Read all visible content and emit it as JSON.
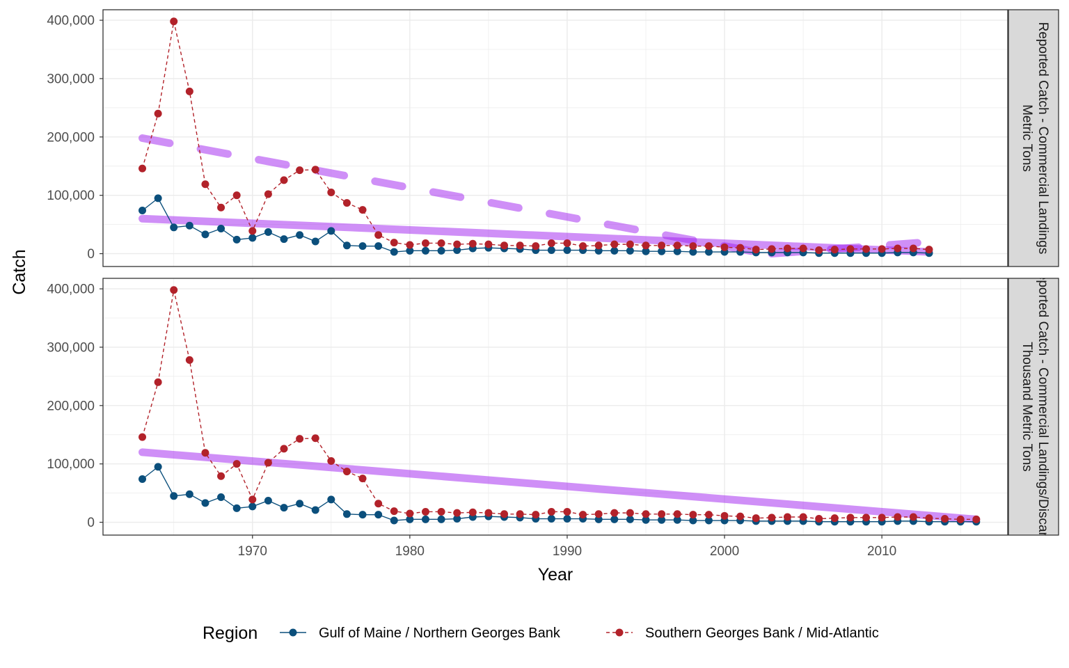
{
  "chart_data": {
    "type": "line",
    "xlabel": "Year",
    "ylabel": "Catch",
    "x_ticks": [
      1970,
      1980,
      1990,
      2000,
      2010
    ],
    "x_tick_labels": [
      "1970",
      "1980",
      "1990",
      "2000",
      "2010"
    ],
    "y_ticks": [
      0,
      100000,
      200000,
      300000,
      400000
    ],
    "y_tick_labels": [
      "0",
      "100,000",
      "200,000",
      "300,000",
      "400,000"
    ],
    "xlim": [
      1960.5,
      2018
    ],
    "ylim": [
      -22000,
      418000
    ],
    "grid": true,
    "legend": {
      "title": "Region",
      "position": "bottom",
      "entries": [
        {
          "label": "Gulf of Maine / Northern Georges Bank",
          "color": "#0b4f7c",
          "linetype": "solid"
        },
        {
          "label": "Southern Georges Bank / Mid-Atlantic",
          "color": "#b2222a",
          "linetype": "dashed"
        }
      ]
    },
    "trend_color": "#a020f0",
    "panels": [
      {
        "strip_label_lines": [
          "Reported Catch - Commercial Landings",
          "Metric Tons"
        ],
        "series": [
          {
            "name": "Gulf of Maine / Northern Georges Bank",
            "color": "#0b4f7c",
            "x": [
              1963,
              1964,
              1965,
              1966,
              1967,
              1968,
              1969,
              1970,
              1971,
              1972,
              1973,
              1974,
              1975,
              1976,
              1977,
              1978,
              1979,
              1980,
              1981,
              1982,
              1983,
              1984,
              1985,
              1986,
              1987,
              1988,
              1989,
              1990,
              1991,
              1992,
              1993,
              1994,
              1995,
              1996,
              1997,
              1998,
              1999,
              2000,
              2001,
              2002,
              2003,
              2004,
              2005,
              2006,
              2007,
              2008,
              2009,
              2010,
              2011,
              2012,
              2013
            ],
            "y": [
              74000,
              95000,
              45000,
              48000,
              33000,
              43000,
              24000,
              27000,
              37000,
              25000,
              32000,
              21000,
              39000,
              14000,
              13000,
              13000,
              3000,
              5000,
              5000,
              5000,
              6000,
              9000,
              10000,
              9000,
              8000,
              6000,
              6000,
              6000,
              6000,
              5000,
              5000,
              5000,
              4000,
              4000,
              4000,
              3000,
              3000,
              3000,
              3000,
              2000,
              2000,
              2000,
              2000,
              1000,
              1000,
              1000,
              1000,
              1000,
              2000,
              2000,
              1000
            ]
          },
          {
            "name": "Southern Georges Bank / Mid-Atlantic",
            "color": "#b2222a",
            "x": [
              1963,
              1964,
              1965,
              1966,
              1967,
              1968,
              1969,
              1970,
              1971,
              1972,
              1973,
              1974,
              1975,
              1976,
              1977,
              1978,
              1979,
              1980,
              1981,
              1982,
              1983,
              1984,
              1985,
              1986,
              1987,
              1988,
              1989,
              1990,
              1991,
              1992,
              1993,
              1994,
              1995,
              1996,
              1997,
              1998,
              1999,
              2000,
              2001,
              2002,
              2003,
              2004,
              2005,
              2006,
              2007,
              2008,
              2009,
              2010,
              2011,
              2012,
              2013
            ],
            "y": [
              146000,
              240000,
              398000,
              278000,
              119000,
              79000,
              100000,
              39000,
              102000,
              126000,
              143000,
              144000,
              105000,
              87000,
              75000,
              32000,
              19000,
              15000,
              18000,
              18000,
              16000,
              17000,
              16000,
              14000,
              14000,
              13000,
              18000,
              18000,
              13000,
              14000,
              16000,
              16000,
              14000,
              14000,
              14000,
              13000,
              13000,
              11000,
              10000,
              7000,
              8000,
              9000,
              9000,
              6000,
              7000,
              8000,
              8000,
              8000,
              9000,
              9000,
              7000
            ]
          }
        ],
        "trends": [
          {
            "x0": 1963,
            "y0": 60000,
            "x1": 2013,
            "y1": 3000,
            "style": "solid"
          },
          {
            "x0": 1963,
            "y0": 198000,
            "x1": 2003,
            "y1": -2000,
            "style": "dashed"
          },
          {
            "x0": 2003,
            "y0": 0,
            "x1": 2013,
            "y1": 20000,
            "style": "dashed"
          }
        ]
      },
      {
        "strip_label_lines": [
          "Reported Catch - Commercial Landings/Discards",
          "Thousand Metric Tons"
        ],
        "series": [
          {
            "name": "Gulf of Maine / Northern Georges Bank",
            "color": "#0b4f7c",
            "x": [
              1963,
              1964,
              1965,
              1966,
              1967,
              1968,
              1969,
              1970,
              1971,
              1972,
              1973,
              1974,
              1975,
              1976,
              1977,
              1978,
              1979,
              1980,
              1981,
              1982,
              1983,
              1984,
              1985,
              1986,
              1987,
              1988,
              1989,
              1990,
              1991,
              1992,
              1993,
              1994,
              1995,
              1996,
              1997,
              1998,
              1999,
              2000,
              2001,
              2002,
              2003,
              2004,
              2005,
              2006,
              2007,
              2008,
              2009,
              2010,
              2011,
              2012,
              2013,
              2014,
              2015,
              2016
            ],
            "y": [
              74,
              95,
              45,
              48,
              33,
              43,
              24,
              27,
              37,
              25,
              32,
              21,
              39,
              14,
              13,
              13,
              3,
              5,
              5,
              5,
              6,
              9,
              10,
              9,
              8,
              6,
              6,
              6,
              6,
              5,
              5,
              5,
              4,
              4,
              4,
              3,
              3,
              3,
              3,
              2,
              2,
              2,
              2,
              1,
              1,
              1,
              1,
              1,
              2,
              2,
              1,
              1,
              1,
              1
            ]
          },
          {
            "name": "Southern Georges Bank / Mid-Atlantic",
            "color": "#b2222a",
            "x": [
              1963,
              1964,
              1965,
              1966,
              1967,
              1968,
              1969,
              1970,
              1971,
              1972,
              1973,
              1974,
              1975,
              1976,
              1977,
              1978,
              1979,
              1980,
              1981,
              1982,
              1983,
              1984,
              1985,
              1986,
              1987,
              1988,
              1989,
              1990,
              1991,
              1992,
              1993,
              1994,
              1995,
              1996,
              1997,
              1998,
              1999,
              2000,
              2001,
              2002,
              2003,
              2004,
              2005,
              2006,
              2007,
              2008,
              2009,
              2010,
              2011,
              2012,
              2013,
              2014,
              2015,
              2016
            ],
            "y": [
              146,
              240,
              398,
              278,
              119,
              79,
              100,
              39,
              102,
              126,
              143,
              144,
              105,
              87,
              75,
              32,
              19,
              15,
              18,
              18,
              16,
              17,
              16,
              14,
              14,
              13,
              18,
              18,
              13,
              14,
              16,
              16,
              14,
              14,
              14,
              13,
              13,
              11,
              10,
              7,
              8,
              9,
              9,
              6,
              7,
              8,
              8,
              8,
              9,
              9,
              7,
              6,
              5,
              5
            ]
          }
        ],
        "trends": [
          {
            "x0": 1963,
            "y0": 120,
            "x1": 2016,
            "y1": 5,
            "style": "solid"
          }
        ]
      }
    ]
  }
}
